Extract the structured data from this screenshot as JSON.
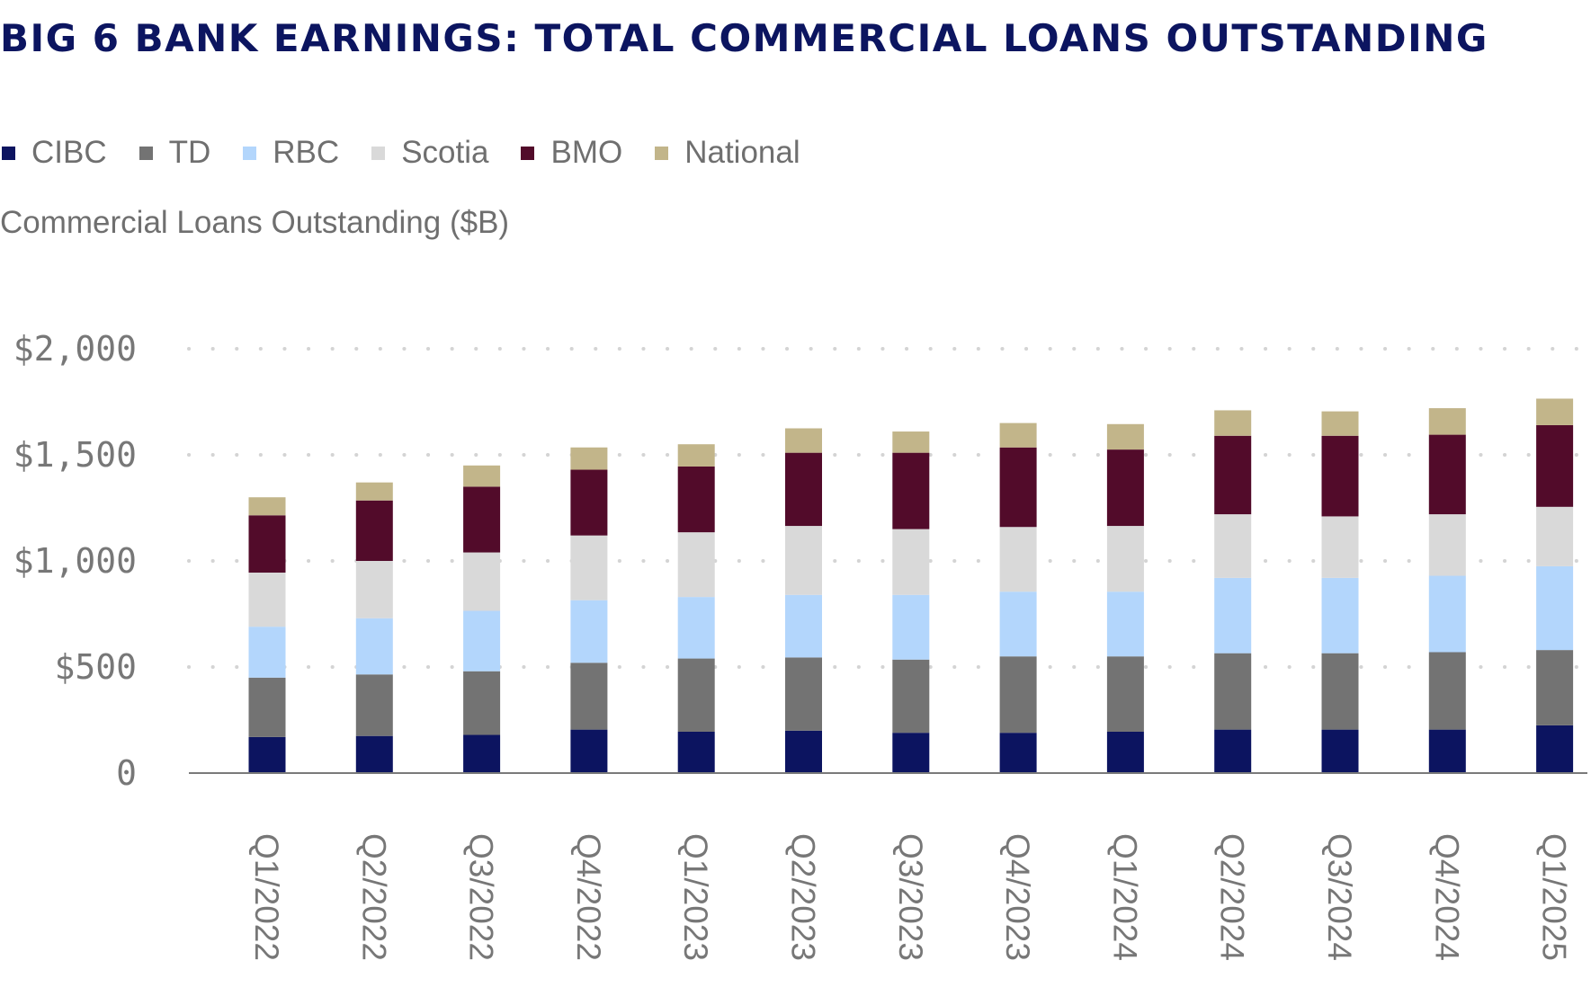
{
  "chart_data": {
    "type": "bar",
    "stacked": true,
    "title": "BIG 6 BANK EARNINGS: TOTAL COMMERCIAL LOANS OUTSTANDING",
    "ylabel": "Commercial Loans Outstanding ($B)",
    "xlabel": "",
    "ylim": [
      0,
      2000
    ],
    "yticks": [
      0,
      500,
      1000,
      1500,
      2000
    ],
    "ytick_labels": [
      "0",
      "$500",
      "$1,000",
      "$1,500",
      "$2,000"
    ],
    "grid": "horizontal-dotted",
    "legend_position": "top-left",
    "categories": [
      "Q1/2022",
      "Q2/2022",
      "Q3/2022",
      "Q4/2022",
      "Q1/2023",
      "Q2/2023",
      "Q3/2023",
      "Q4/2023",
      "Q1/2024",
      "Q2/2024",
      "Q3/2024",
      "Q4/2024",
      "Q1/2025"
    ],
    "series": [
      {
        "name": "CIBC",
        "color": "#0c1460",
        "values": [
          170,
          175,
          180,
          205,
          195,
          200,
          190,
          190,
          195,
          205,
          205,
          205,
          225
        ]
      },
      {
        "name": "TD",
        "color": "#737373",
        "values": [
          280,
          290,
          300,
          315,
          345,
          345,
          345,
          360,
          355,
          360,
          360,
          365,
          355
        ]
      },
      {
        "name": "RBC",
        "color": "#b3d6fc",
        "values": [
          240,
          265,
          285,
          295,
          290,
          295,
          305,
          305,
          305,
          355,
          355,
          360,
          395
        ]
      },
      {
        "name": "Scotia",
        "color": "#d9d9d9",
        "values": [
          255,
          270,
          275,
          305,
          305,
          325,
          310,
          305,
          310,
          300,
          290,
          290,
          280
        ]
      },
      {
        "name": "BMO",
        "color": "#520b2a",
        "values": [
          270,
          285,
          310,
          310,
          310,
          345,
          360,
          375,
          360,
          370,
          380,
          375,
          385
        ]
      },
      {
        "name": "National",
        "color": "#c2b58a",
        "values": [
          85,
          85,
          100,
          105,
          105,
          115,
          100,
          115,
          120,
          120,
          115,
          125,
          125
        ]
      }
    ]
  }
}
